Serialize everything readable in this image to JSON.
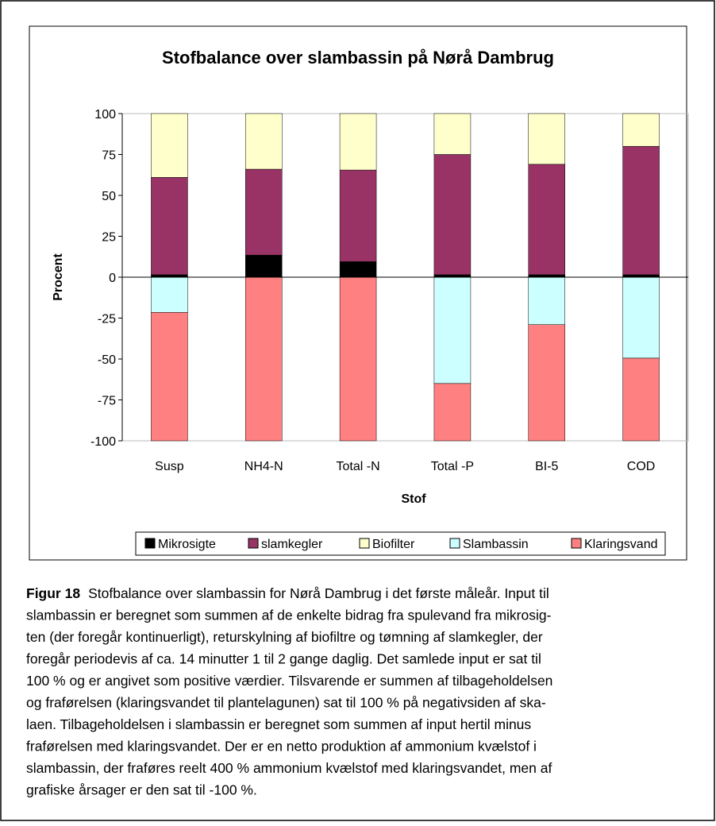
{
  "chart_data": {
    "type": "stacked_bar",
    "title": "Stofbalance over slambassin på Nørå Dambrug",
    "x_label": "Stof",
    "y_label": "Procent",
    "categories": [
      "Susp",
      "NH4-N",
      "Total -N",
      "Total -P",
      "BI-5",
      "COD"
    ],
    "series": [
      {
        "name": "Mikrosigte",
        "color": "#000000",
        "values": [
          1.5,
          13.5,
          9.5,
          1.5,
          1.5,
          1.5
        ]
      },
      {
        "name": "slamkegler",
        "color": "#993366",
        "values": [
          59.5,
          52.5,
          56,
          73.5,
          67.5,
          78.5
        ]
      },
      {
        "name": "Biofilter",
        "color": "#ffffcc",
        "values": [
          39,
          34,
          34.5,
          25,
          31,
          20
        ]
      },
      {
        "name": "Slambassin",
        "color": "#ccffff",
        "values": [
          -21.5,
          0,
          0,
          -65,
          -29,
          -49.5
        ]
      },
      {
        "name": "Klaringsvand",
        "color": "#ff8080",
        "values": [
          -78.5,
          -100,
          -100,
          -35,
          -71,
          -50.5
        ]
      }
    ],
    "ylim": [
      -100,
      100
    ],
    "yticks": [
      -100,
      -75,
      -50,
      -25,
      0,
      25,
      50,
      75,
      100
    ],
    "grid": false,
    "legend": "bottom"
  },
  "caption": {
    "label": "Figur 18",
    "lines": [
      "Stofbalance over slambassin for Nørå Dambrug i det første måleår. Input til",
      "slambassin er beregnet som summen af de enkelte bidrag fra spulevand fra mikrosig-",
      "ten (der foregår kontinuerligt), returskylning af biofiltre og tømning af slamkegler, der",
      "foregår periodevis af ca. 14 minutter 1 til 2 gange daglig. Det samlede input er sat til",
      "100 % og er angivet som positive værdier. Tilsvarende er summen af tilbageholdelsen",
      "og fraførelsen (klaringsvandet til plantelagunen) sat til 100 % på negativsiden af ska-",
      "laen. Tilbageholdelsen i slambassin er beregnet som summen af input hertil minus",
      "fraførelsen med klaringsvandet. Der er en netto produktion af ammonium kvælstof i",
      "slambassin, der fraføres reelt 400 % ammonium kvælstof med klaringsvandet, men af",
      "grafiske årsager er den sat til -100 %."
    ]
  }
}
